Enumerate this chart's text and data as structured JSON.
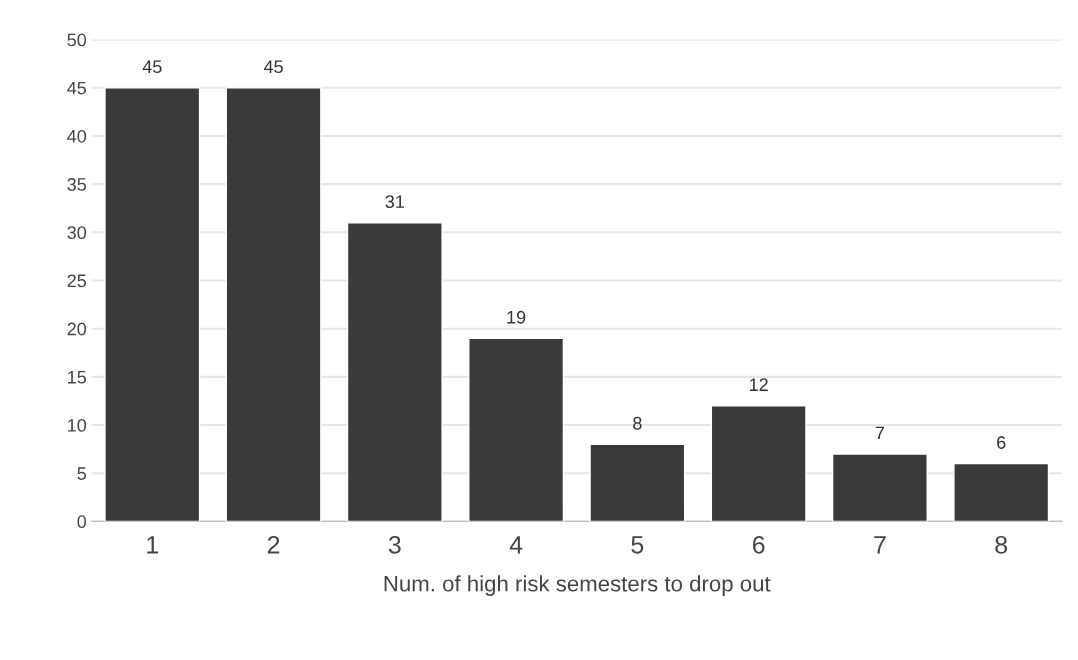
{
  "chart_data": {
    "type": "bar",
    "xlabel": "Num. of high risk semesters to drop out",
    "categories": [
      "1",
      "2",
      "3",
      "4",
      "5",
      "6",
      "7",
      "8"
    ],
    "values": [
      45,
      45,
      31,
      19,
      8,
      12,
      7,
      6
    ],
    "color": "#3a3a3a",
    "ylim": [
      0,
      50
    ],
    "yticks": [
      0,
      5,
      10,
      15,
      20,
      25,
      30,
      35,
      40,
      45,
      50
    ],
    "grid": "y",
    "data_labels": true
  }
}
